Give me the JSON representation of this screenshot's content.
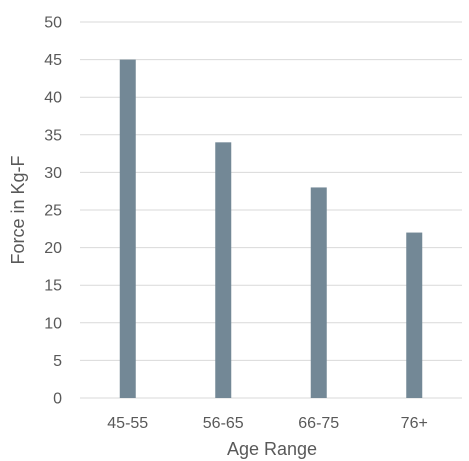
{
  "chart_data": {
    "type": "bar",
    "title": "",
    "categories": [
      "45-55",
      "56-65",
      "66-75",
      "76+"
    ],
    "values": [
      45,
      34,
      28,
      22
    ],
    "xlabel": "Age Range",
    "ylabel": "Force in Kg-F",
    "ylim": [
      0,
      50
    ],
    "yticks": [
      0,
      5,
      10,
      15,
      20,
      25,
      30,
      35,
      40,
      45,
      50
    ],
    "grid": true,
    "legend": "none",
    "colors": {
      "bar": "#738896",
      "grid": "#d9d9d9",
      "text": "#595959"
    }
  }
}
